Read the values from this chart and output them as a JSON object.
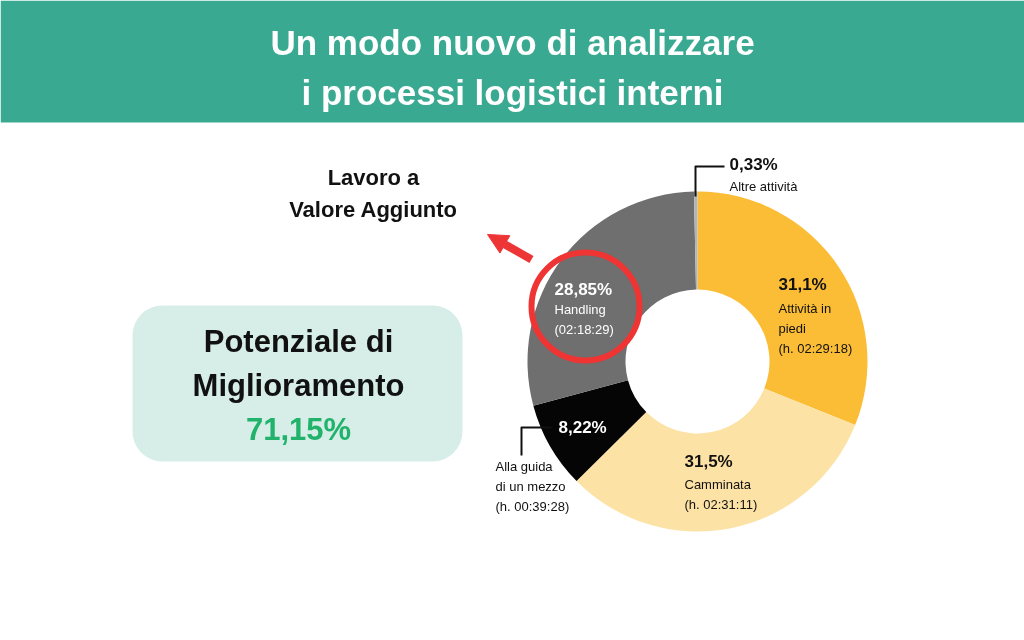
{
  "chart_data": {
    "type": "donut",
    "title": "Un modo nuovo di analizzare i processi logistici interni",
    "categories": [
      "Attività in piedi (h. 02:29:18)",
      "Camminata (h. 02:31:11)",
      "Alla guida di un mezzo (h. 00:39:28)",
      "Handling (02:18:29)",
      "Altre attività"
    ],
    "values": [
      31.1,
      31.5,
      8.22,
      28.85,
      0.33
    ],
    "value_labels": [
      "31,1%",
      "31,5%",
      "8,22%",
      "28,85%",
      "0,33%"
    ],
    "colors": [
      "#fbbd36",
      "#fde2a5",
      "#050505",
      "#6f6f6f",
      "#b4b4b4"
    ],
    "annotations": [
      "Lavoro a Valore Aggiunto",
      "Potenziale di Miglioramento",
      "71,15%"
    ]
  }
}
